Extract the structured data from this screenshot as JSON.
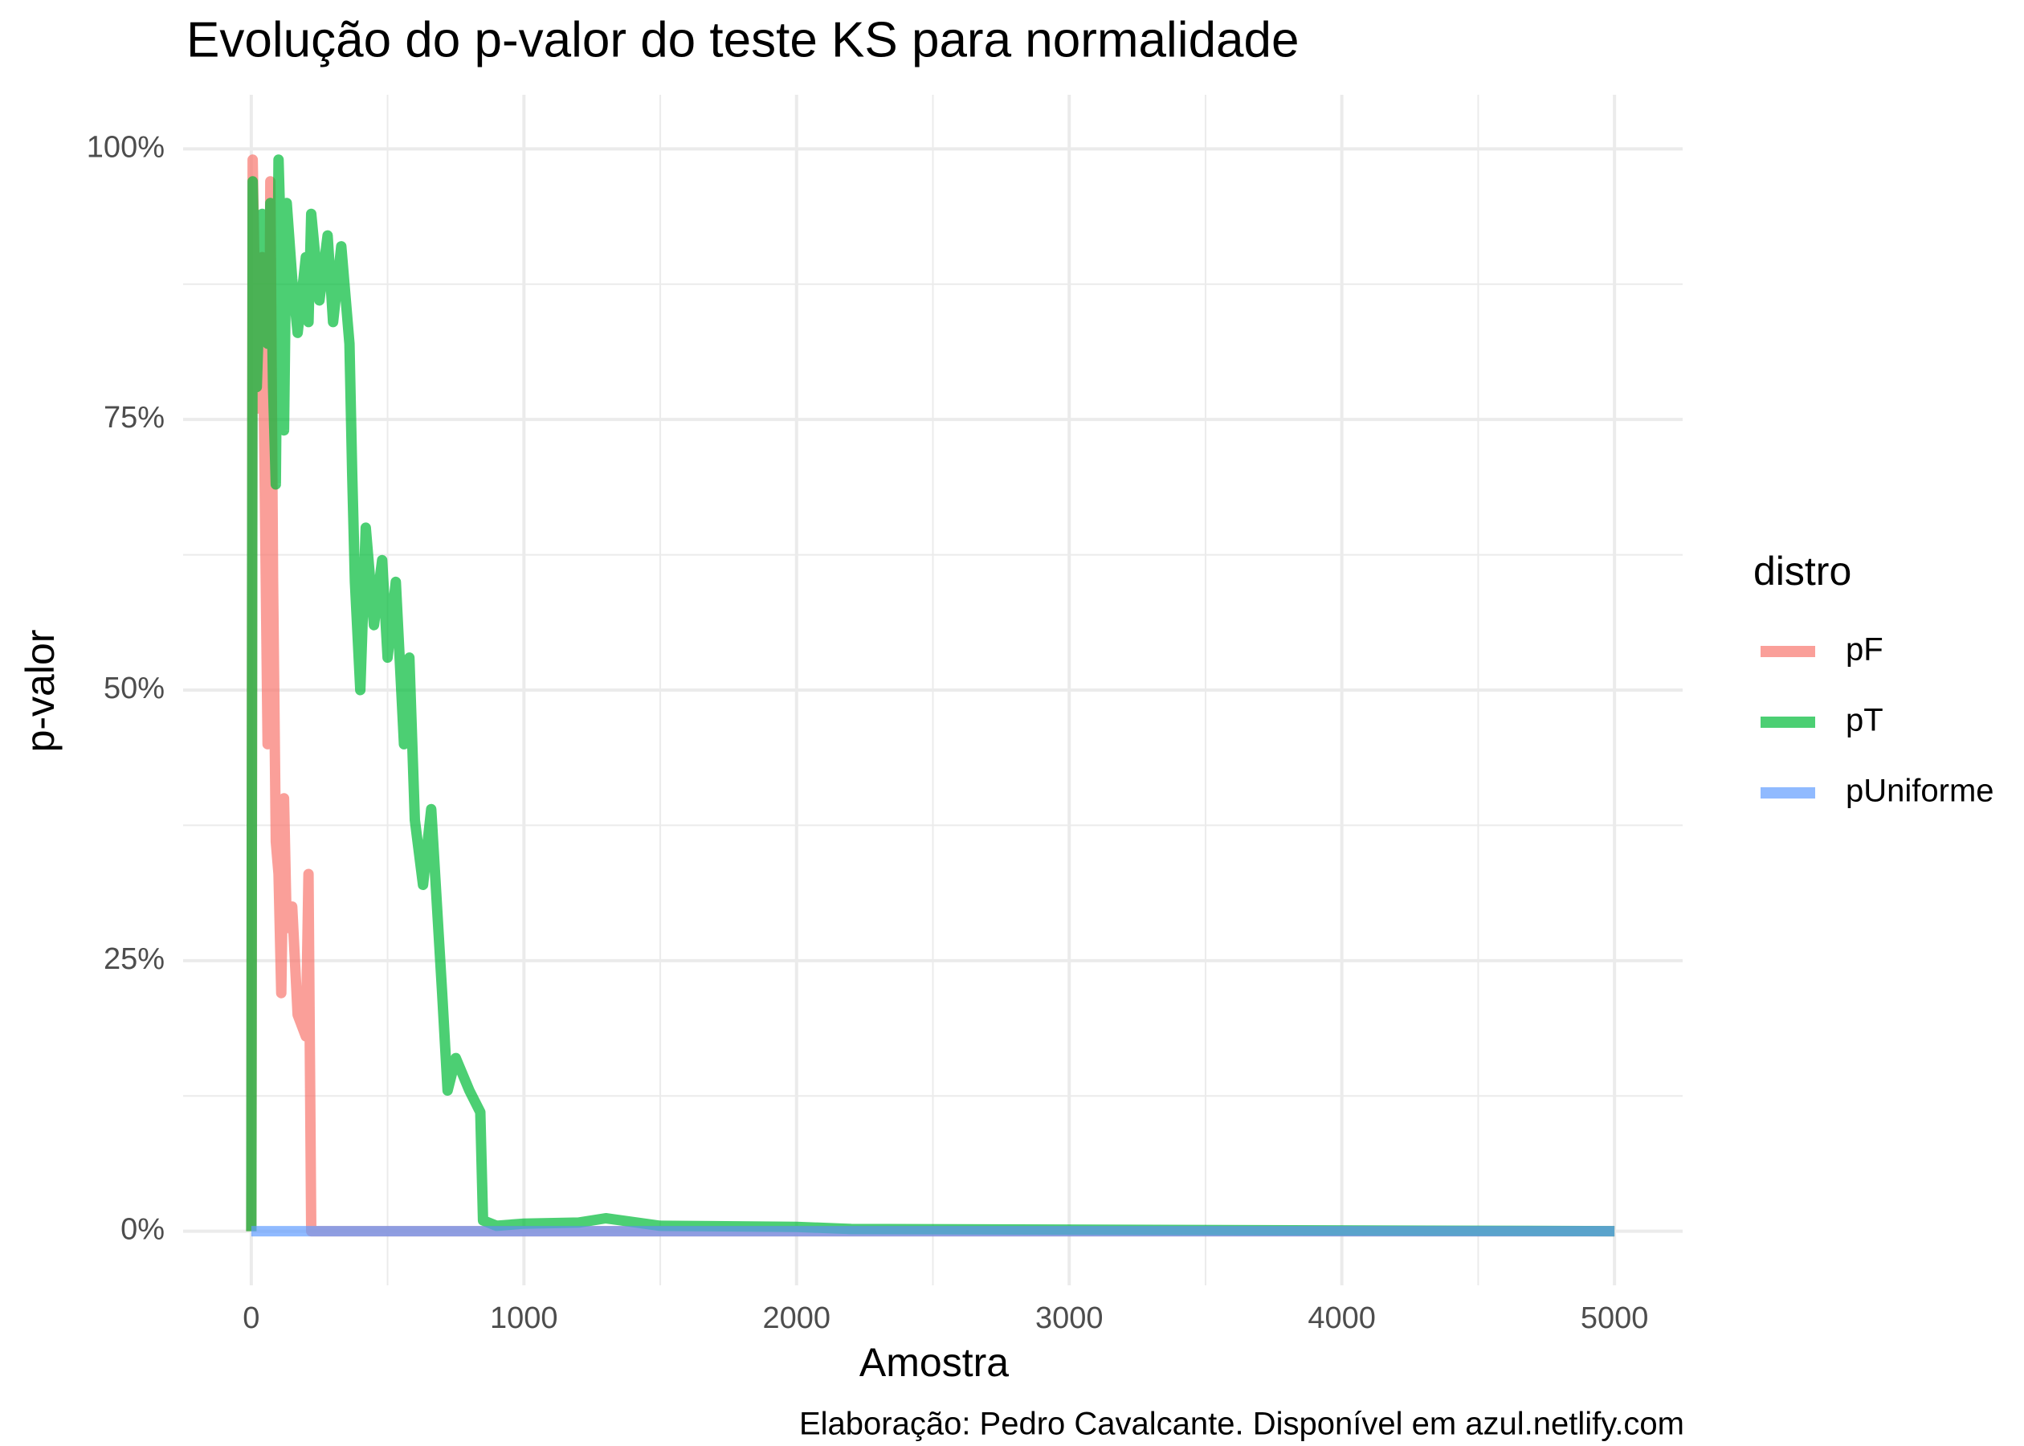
{
  "chart_data": {
    "type": "line",
    "title": "Evolução do p-valor do teste KS para normalidade",
    "x_label": "Amostra",
    "y_label": "p-valor",
    "caption": "Elaboração: Pedro Cavalcante. Disponível em azul.netlify.com",
    "legend_title": "distro",
    "legend_position": "right",
    "grid": true,
    "opacity": 0.7,
    "xlim": [
      -250,
      5250
    ],
    "ylim": [
      -5,
      105
    ],
    "xticks": [
      0,
      1000,
      2000,
      3000,
      4000,
      5000
    ],
    "minor_xticks": [
      500,
      1500,
      2500,
      3500,
      4500
    ],
    "yticks": [
      {
        "value": 0,
        "label": "0%"
      },
      {
        "value": 25,
        "label": "25%"
      },
      {
        "value": 50,
        "label": "50%"
      },
      {
        "value": 75,
        "label": "75%"
      },
      {
        "value": 100,
        "label": "100%"
      }
    ],
    "minor_yticks": [
      12.5,
      37.5,
      62.5,
      87.5
    ],
    "x": [
      0,
      5,
      20,
      40,
      60,
      70,
      80,
      90,
      100,
      110,
      120,
      130,
      150,
      170,
      200,
      210,
      220,
      250,
      280,
      300,
      330,
      360,
      370,
      380,
      400,
      420,
      450,
      480,
      500,
      530,
      560,
      580,
      600,
      630,
      660,
      700,
      720,
      750,
      800,
      840,
      850,
      900,
      1000,
      1200,
      1300,
      1500,
      2000,
      2200,
      5000
    ],
    "series": [
      {
        "name": "pF",
        "color": "#F8766D",
        "values": [
          0,
          99,
          76,
          90,
          45,
          97,
          60,
          36,
          33,
          22,
          40,
          28,
          30,
          20,
          18,
          33,
          0,
          0,
          0,
          0,
          0,
          0,
          0,
          0,
          0,
          0,
          0,
          0,
          0,
          0,
          0,
          0,
          0,
          0,
          0,
          0,
          0,
          0,
          0,
          0,
          0,
          0,
          0,
          0,
          0,
          0,
          0,
          0,
          0
        ]
      },
      {
        "name": "pT",
        "color": "#00BA38",
        "values": [
          0,
          97,
          78,
          94,
          82,
          95,
          78,
          69,
          99,
          90,
          74,
          95,
          88,
          83,
          90,
          84,
          94,
          86,
          92,
          84,
          91,
          82,
          70,
          60,
          50,
          65,
          56,
          62,
          53,
          60,
          45,
          53,
          38,
          32,
          39,
          22,
          13,
          16,
          13,
          11,
          1,
          0.5,
          0.7,
          0.8,
          1.2,
          0.5,
          0.4,
          0.2,
          0
        ]
      },
      {
        "name": "pUniforme",
        "color": "#619CFF",
        "values": [
          0,
          0,
          0,
          0,
          0,
          0,
          0,
          0,
          0,
          0,
          0,
          0,
          0,
          0,
          0,
          0,
          0,
          0,
          0,
          0,
          0,
          0,
          0,
          0,
          0,
          0,
          0,
          0,
          0,
          0,
          0,
          0,
          0,
          0,
          0,
          0,
          0,
          0,
          0,
          0,
          0,
          0,
          0,
          0,
          0,
          0,
          0,
          0,
          0
        ]
      }
    ]
  }
}
